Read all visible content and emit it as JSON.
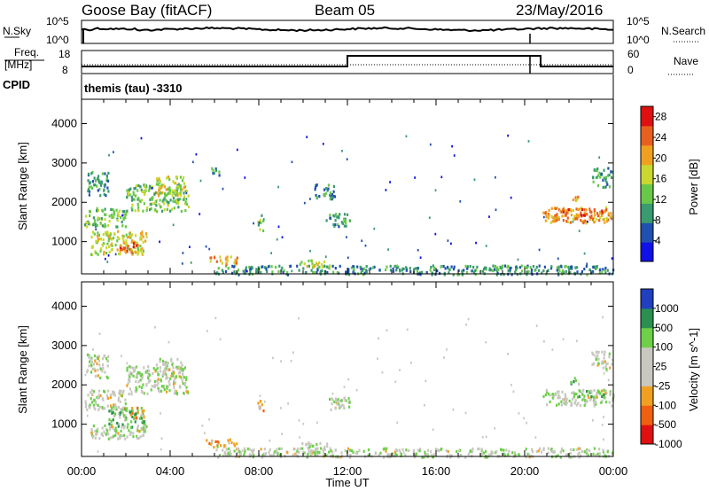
{
  "header": {
    "station": "Goose Bay (fitACF)",
    "beam": "Beam 05",
    "date": "23/May/2016"
  },
  "top_panels": {
    "nsky_label": "N.Sky",
    "nsearch_label": "N.Search",
    "nsky_ticks": [
      "10^5",
      "10^0"
    ],
    "nsearch_ticks": [
      "10^5",
      "10^0"
    ],
    "freq_label_1": "Freq.",
    "freq_label_2": "[MHz]",
    "freq_ticks": [
      "18",
      "8"
    ],
    "nave_label": "Nave",
    "nave_ticks": [
      "60",
      "0"
    ],
    "cpid_label": "CPID",
    "cpid_value": "themis (tau) -3310"
  },
  "colors": {
    "power_scale": [
      "#1010e8",
      "#2050b0",
      "#3a9a70",
      "#68c84a",
      "#c8d830",
      "#f0a020",
      "#e86020",
      "#e01010"
    ],
    "velocity_scale": [
      "#2040c0",
      "#2a8f50",
      "#6dd048",
      "#c8c8c0",
      "#c8c8c0",
      "#f0a020",
      "#f06010",
      "#e01010"
    ]
  },
  "chart_data": [
    {
      "type": "heatmap",
      "name": "power",
      "ylabel": "Slant Range [km]",
      "ylim": [
        180,
        4620
      ],
      "yticks": [
        "1000",
        "2000",
        "3000",
        "4000"
      ],
      "xlim_hours": [
        0,
        24
      ],
      "xticks": [
        "00:00",
        "04:00",
        "08:00",
        "12:00",
        "16:00",
        "20:00",
        "00:00"
      ],
      "colorbar_label": "Power [dB]",
      "colorbar_ticks": [
        "4",
        "8",
        "12",
        "16",
        "20",
        "24",
        "28"
      ],
      "colorbar_range": [
        0,
        30
      ],
      "regions": [
        {
          "t0": 0.1,
          "t1": 2.0,
          "r0": 1400,
          "r1": 1900,
          "level": 3
        },
        {
          "t0": 0.4,
          "t1": 2.9,
          "r0": 700,
          "r1": 1300,
          "level": 4
        },
        {
          "t0": 1.7,
          "t1": 2.5,
          "r0": 700,
          "r1": 1000,
          "level": 6
        },
        {
          "t0": 0.2,
          "t1": 1.2,
          "r0": 2200,
          "r1": 2800,
          "level": 2
        },
        {
          "t0": 2.0,
          "t1": 4.8,
          "r0": 1800,
          "r1": 2500,
          "level": 3
        },
        {
          "t0": 3.3,
          "t1": 4.6,
          "r0": 2200,
          "r1": 2700,
          "level": 4
        },
        {
          "t0": 5.7,
          "t1": 6.2,
          "r0": 2700,
          "r1": 2900,
          "level": 2
        },
        {
          "t0": 6.0,
          "t1": 24.0,
          "r0": 190,
          "r1": 420,
          "level": 2
        },
        {
          "t0": 5.6,
          "t1": 7.0,
          "r0": 450,
          "r1": 650,
          "level": 5
        },
        {
          "t0": 9.8,
          "t1": 11.2,
          "r0": 380,
          "r1": 560,
          "level": 4
        },
        {
          "t0": 7.9,
          "t1": 8.2,
          "r0": 1300,
          "r1": 1700,
          "level": 3
        },
        {
          "t0": 11.0,
          "t1": 12.1,
          "r0": 1400,
          "r1": 1750,
          "level": 2
        },
        {
          "t0": 10.5,
          "t1": 11.4,
          "r0": 2100,
          "r1": 2500,
          "level": 2
        },
        {
          "t0": 20.8,
          "t1": 24.0,
          "r0": 1500,
          "r1": 1900,
          "level": 5
        },
        {
          "t0": 21.5,
          "t1": 23.5,
          "r0": 1650,
          "r1": 1850,
          "level": 6
        },
        {
          "t0": 22.0,
          "t1": 22.4,
          "r0": 2050,
          "r1": 2250,
          "level": 5
        },
        {
          "t0": 23.0,
          "t1": 23.9,
          "r0": 2400,
          "r1": 2900,
          "level": 2
        }
      ]
    },
    {
      "type": "heatmap",
      "name": "velocity",
      "ylabel": "Slant Range [km]",
      "ylim": [
        180,
        4620
      ],
      "yticks": [
        "1000",
        "2000",
        "3000",
        "4000"
      ],
      "xlim_hours": [
        0,
        24
      ],
      "xticks": [
        "00:00",
        "04:00",
        "08:00",
        "12:00",
        "16:00",
        "20:00",
        "00:00"
      ],
      "xlabel": "Time UT",
      "colorbar_label": "Velocity [m s^-1]",
      "colorbar_ticks": [
        "1000",
        "500",
        "100",
        "25",
        "-25",
        "-100",
        "-500",
        "-1000"
      ],
      "regions": [
        {
          "t0": 0.1,
          "t1": 2.0,
          "r0": 1400,
          "r1": 1900,
          "level": 3
        },
        {
          "t0": 0.4,
          "t1": 2.9,
          "r0": 650,
          "r1": 1000,
          "level": 3
        },
        {
          "t0": 1.2,
          "t1": 2.9,
          "r0": 900,
          "r1": 1450,
          "level": 2
        },
        {
          "t0": 2.2,
          "t1": 2.8,
          "r0": 1200,
          "r1": 1450,
          "level": 5
        },
        {
          "t0": 0.2,
          "t1": 1.2,
          "r0": 2200,
          "r1": 2800,
          "level": 3
        },
        {
          "t0": 2.0,
          "t1": 4.8,
          "r0": 1800,
          "r1": 2500,
          "level": 3
        },
        {
          "t0": 3.3,
          "t1": 4.6,
          "r0": 2200,
          "r1": 2700,
          "level": 3
        },
        {
          "t0": 6.0,
          "t1": 24.0,
          "r0": 190,
          "r1": 420,
          "level": 3
        },
        {
          "t0": 5.6,
          "t1": 7.0,
          "r0": 450,
          "r1": 650,
          "level": 5
        },
        {
          "t0": 9.8,
          "t1": 11.2,
          "r0": 380,
          "r1": 560,
          "level": 3
        },
        {
          "t0": 7.9,
          "t1": 8.2,
          "r0": 1300,
          "r1": 1700,
          "level": 5
        },
        {
          "t0": 11.0,
          "t1": 12.1,
          "r0": 1400,
          "r1": 1750,
          "level": 3
        },
        {
          "t0": 20.8,
          "t1": 24.0,
          "r0": 1500,
          "r1": 1900,
          "level": 3
        },
        {
          "t0": 22.2,
          "t1": 23.7,
          "r0": 1700,
          "r1": 1900,
          "level": 2
        },
        {
          "t0": 22.0,
          "t1": 22.4,
          "r0": 2050,
          "r1": 2250,
          "level": 2
        },
        {
          "t0": 23.0,
          "t1": 23.9,
          "r0": 2400,
          "r1": 2900,
          "level": 3
        }
      ]
    }
  ]
}
